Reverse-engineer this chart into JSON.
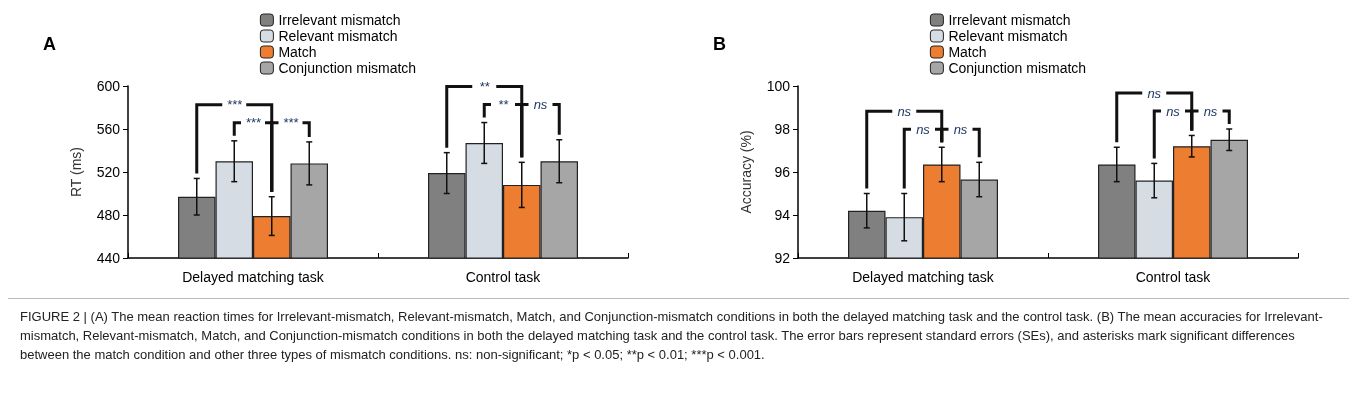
{
  "chart_data": [
    {
      "type": "bar",
      "title": "A",
      "ylabel": "RT (ms)",
      "categories": [
        "Delayed matching task",
        "Control task"
      ],
      "ylim": [
        440,
        600
      ],
      "yticks": [
        440,
        480,
        520,
        560,
        600
      ],
      "grid": false,
      "legend": "top",
      "series": [
        {
          "name": "Irrelevant mismatch",
          "color": "#808080",
          "values": [
            497,
            519
          ],
          "errors": [
            17,
            19
          ]
        },
        {
          "name": "Relevant mismatch",
          "color": "#d6dce4",
          "values": [
            530,
            547
          ],
          "errors": [
            19,
            19
          ]
        },
        {
          "name": "Match",
          "color": "#ed7d31",
          "values": [
            479,
            508
          ],
          "errors": [
            18,
            21
          ]
        },
        {
          "name": "Conjunction mismatch",
          "color": "#a6a6a6",
          "values": [
            528,
            530
          ],
          "errors": [
            20,
            20
          ]
        }
      ],
      "annotations": [
        "***",
        "***",
        "***",
        "**",
        "**",
        "ns",
        "FIGURE 2 | (A) The mean reaction times for Irrelevant-mismatch, Relevant-mismatch, Match, and Conjunction-mismatch conditions in both the delayed matching task and the control task. (B) The mean accuracies for Irrelevant-mismatch, Relevant-mismatch, Match, and Conjunction-mismatch conditions in both the delayed matching task and the control task. The error bars represent standard errors (SEs), and asterisks mark significant differences between the match condition and other three types of mismatch conditions. ns: non-significant; *p < 0.05; **p < 0.01; ***p < 0.001."
      ]
    },
    {
      "type": "bar",
      "title": "B",
      "ylabel": "Accuracy (%)",
      "categories": [
        "Delayed matching task",
        "Control task"
      ],
      "ylim": [
        92,
        100
      ],
      "yticks": [
        92,
        94,
        96,
        98,
        100
      ],
      "grid": false,
      "legend": "top",
      "series": [
        {
          "name": "Irrelevant mismatch",
          "color": "#808080",
          "values": [
            94.2,
            96.35
          ],
          "errors": [
            0.8,
            0.8
          ]
        },
        {
          "name": "Relevant mismatch",
          "color": "#d6dce4",
          "values": [
            93.9,
            95.6
          ],
          "errors": [
            1.1,
            0.8
          ]
        },
        {
          "name": "Match",
          "color": "#ed7d31",
          "values": [
            96.35,
            97.2
          ],
          "errors": [
            0.8,
            0.5
          ]
        },
        {
          "name": "Conjunction mismatch",
          "color": "#a6a6a6",
          "values": [
            95.65,
            97.5
          ],
          "errors": [
            0.8,
            0.5
          ]
        }
      ],
      "annotations": [
        "ns",
        "ns",
        "ns",
        "ns",
        "ns",
        "ns"
      ]
    }
  ]
}
